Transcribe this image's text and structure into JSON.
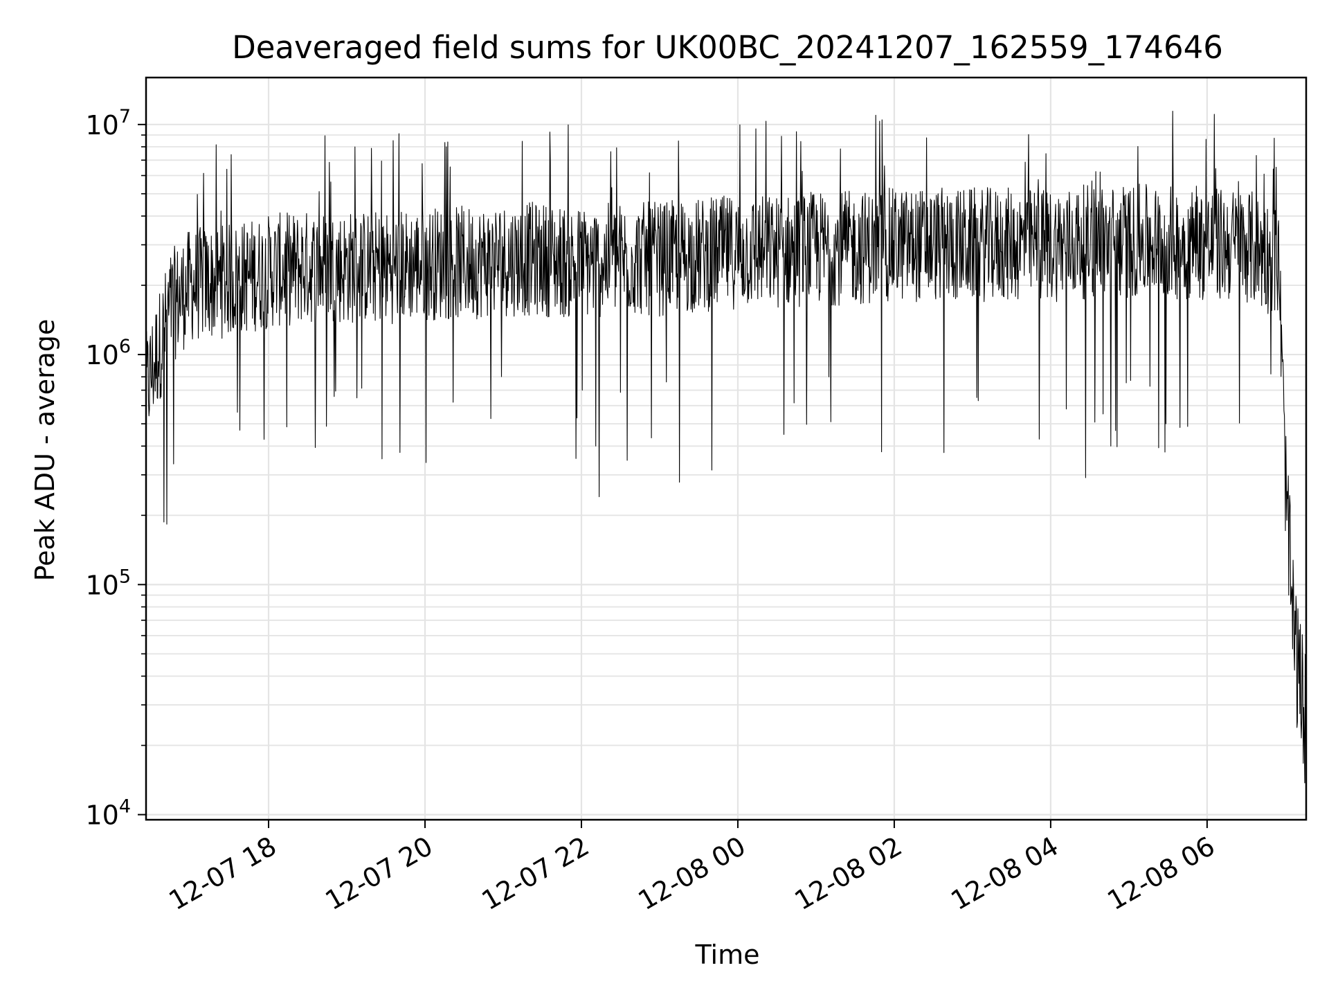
{
  "chart_data": {
    "type": "line",
    "title": "Deaveraged field sums for UK00BC_20241207_162559_174646",
    "xlabel": "Time",
    "ylabel": "Peak ADU - average",
    "yscale": "log",
    "ylim": [
      9500,
      16000000
    ],
    "xlim": [
      "2024-12-07 16:26",
      "2024-12-08 07:16"
    ],
    "grid": true,
    "x_ticks": [
      {
        "t": "2024-12-07 18:00",
        "label": "12-07 18"
      },
      {
        "t": "2024-12-07 20:00",
        "label": "12-07 20"
      },
      {
        "t": "2024-12-07 22:00",
        "label": "12-07 22"
      },
      {
        "t": "2024-12-08 00:00",
        "label": "12-08 00"
      },
      {
        "t": "2024-12-08 02:00",
        "label": "12-08 02"
      },
      {
        "t": "2024-12-08 04:00",
        "label": "12-08 04"
      },
      {
        "t": "2024-12-08 06:00",
        "label": "12-08 06"
      }
    ],
    "y_ticks": [
      {
        "value": 10000,
        "base": "10",
        "exp": "4"
      },
      {
        "value": 100000,
        "base": "10",
        "exp": "5"
      },
      {
        "value": 1000000,
        "base": "10",
        "exp": "6"
      },
      {
        "value": 10000000,
        "base": "10",
        "exp": "7"
      }
    ],
    "series": [
      {
        "line_color": "#000000",
        "x": [
          "2024-12-07 16:26",
          "2024-12-07 16:45",
          "2024-12-07 17:00",
          "2024-12-07 17:30",
          "2024-12-07 18:00",
          "2024-12-07 18:30",
          "2024-12-07 19:00",
          "2024-12-07 19:30",
          "2024-12-07 20:00",
          "2024-12-07 20:30",
          "2024-12-07 21:00",
          "2024-12-07 21:30",
          "2024-12-07 22:00",
          "2024-12-07 22:30",
          "2024-12-07 23:00",
          "2024-12-07 23:30",
          "2024-12-08 00:00",
          "2024-12-08 00:30",
          "2024-12-08 01:00",
          "2024-12-08 01:30",
          "2024-12-08 02:00",
          "2024-12-08 02:30",
          "2024-12-08 03:00",
          "2024-12-08 03:30",
          "2024-12-08 04:00",
          "2024-12-08 04:30",
          "2024-12-08 05:00",
          "2024-12-08 05:30",
          "2024-12-08 06:00",
          "2024-12-08 06:30",
          "2024-12-08 06:55",
          "2024-12-08 07:00",
          "2024-12-08 07:05",
          "2024-12-08 07:10",
          "2024-12-08 07:16"
        ],
        "values": [
          700000,
          1600000,
          2000000,
          2100000,
          2300000,
          2400000,
          2400000,
          2400000,
          2500000,
          2500000,
          2600000,
          2600000,
          2500000,
          2600000,
          2600000,
          2700000,
          2800000,
          2800000,
          2900000,
          2900000,
          3000000,
          3000000,
          3000000,
          3000000,
          3000000,
          3100000,
          3100000,
          3100000,
          3000000,
          3000000,
          2500000,
          300000,
          80000,
          40000,
          25000
        ]
      }
    ],
    "annotations": []
  }
}
